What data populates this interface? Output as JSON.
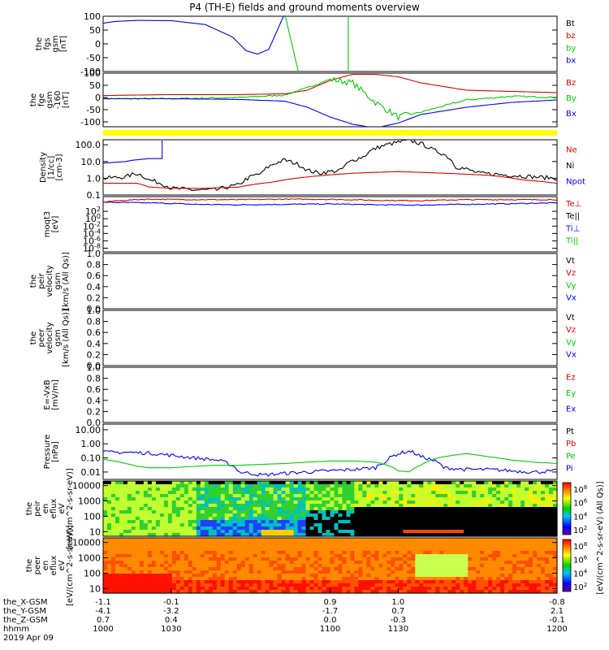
{
  "title": "P4 (TH-E) fields and ground moments overview",
  "date": "2019 Apr 09",
  "chart_data": {
    "type": "line",
    "x_label": "hhmm",
    "x_range": [
      1000,
      1200
    ],
    "x_ticks": [
      "1000",
      "1030",
      "1100",
      "1130",
      "1200"
    ],
    "orbit_rows": [
      {
        "label": "the_X-GSM",
        "values": [
          "-1.1",
          "-0.1",
          "0.9",
          "1.0",
          "-0.8"
        ]
      },
      {
        "label": "the_Y-GSM",
        "values": [
          "-4.1",
          "-3.2",
          "-1.7",
          "0.7",
          "2.1"
        ]
      },
      {
        "label": "the_Z-GSM",
        "values": [
          "0.7",
          "0.4",
          "0.0",
          "-0.3",
          "-0.1"
        ]
      },
      {
        "label": "hhmm",
        "values": [
          "1000",
          "1030",
          "1100",
          "1130",
          "1200"
        ]
      }
    ],
    "panels": [
      {
        "id": "fgs",
        "ylabel": [
          "the",
          "fgs",
          "gsm",
          "[nT]"
        ],
        "scale": "linear",
        "ylim": [
          -100,
          100
        ],
        "y_ticks": [
          "100",
          "50",
          "0",
          "-50",
          "-100"
        ],
        "legend": [
          {
            "text": "Bt",
            "color": "#000000"
          },
          {
            "text": "bz",
            "color": "#dd0000"
          },
          {
            "text": "by",
            "color": "#00cc00"
          },
          {
            "text": "bx",
            "color": "#0000ff"
          }
        ],
        "series": [
          {
            "name": "bx",
            "color": "#0000dd",
            "x": [
              1000,
              1005,
              1015,
              1030,
              1045,
              1057,
              1063,
              1068,
              1073,
              1080
            ],
            "y": [
              75,
              81,
              85,
              84,
              70,
              25,
              -25,
              -37,
              -20,
              110
            ]
          },
          {
            "name": "by",
            "color": "#00cc00",
            "x": [
              1080,
              1086
            ],
            "y": [
              110,
              -100
            ]
          },
          {
            "name": "by",
            "color": "#00cc00",
            "x": [
              1108,
              1108
            ],
            "y": [
              -100,
              110
            ]
          }
        ]
      },
      {
        "id": "fge",
        "ylabel": [
          "the",
          "fge",
          "gsm",
          "-160",
          "[nT]"
        ],
        "scale": "linear",
        "ylim": [
          -120,
          100
        ],
        "y_ticks": [
          "100",
          "50",
          "0",
          "-50",
          "-100"
        ],
        "legend": [
          {
            "text": "Bz",
            "color": "#dd0000"
          },
          {
            "text": "By",
            "color": "#00cc00"
          },
          {
            "text": "Bx",
            "color": "#0000ff"
          }
        ],
        "series": [
          {
            "name": "Bz",
            "color": "#dd0000",
            "x": [
              1000,
              1030,
              1060,
              1080,
              1090,
              1100,
              1110,
              1120,
              1130,
              1140,
              1160,
              1200
            ],
            "y": [
              8,
              12,
              12,
              15,
              30,
              70,
              95,
              95,
              85,
              60,
              30,
              20
            ]
          },
          {
            "name": "By",
            "color": "#00cc00",
            "x": [
              1000,
              1030,
              1060,
              1080,
              1090,
              1100,
              1110,
              1120,
              1130,
              1140,
              1160,
              1180,
              1200
            ],
            "y": [
              -5,
              -5,
              0,
              10,
              40,
              75,
              60,
              -20,
              -80,
              -60,
              -10,
              5,
              0
            ]
          },
          {
            "name": "Bx",
            "color": "#0000ff",
            "x": [
              1000,
              1030,
              1060,
              1080,
              1090,
              1100,
              1110,
              1120,
              1130,
              1140,
              1160,
              1180,
              1200
            ],
            "y": [
              -5,
              -5,
              -8,
              -15,
              -40,
              -80,
              -110,
              -125,
              -105,
              -70,
              -40,
              -20,
              -10
            ]
          }
        ]
      },
      {
        "id": "moments_density",
        "ylabel": [
          "Density",
          "[1/cc]",
          "[cm-3]"
        ],
        "scale": "log",
        "ylim": [
          0.1,
          200
        ],
        "y_ticks": [
          "100.0",
          "10.0",
          "1.0",
          "0.1"
        ],
        "legend": [
          {
            "text": "Ne",
            "color": "#dd0000"
          },
          {
            "text": "Ni",
            "color": "#000000"
          },
          {
            "text": "Npot",
            "color": "#0000ff"
          }
        ],
        "series": [
          {
            "name": "Ni",
            "color": "#000000",
            "x": [
              1000,
              1010,
              1015,
              1020,
              1030,
              1040,
              1050,
              1060,
              1070,
              1080,
              1090,
              1095,
              1105,
              1115,
              1125,
              1135,
              1145,
              1155,
              1165,
              1180,
              1190,
              1200
            ],
            "y": [
              1.0,
              1.2,
              2.0,
              0.8,
              0.25,
              0.2,
              0.2,
              0.4,
              2.0,
              12,
              3.0,
              2.0,
              3.0,
              20,
              100,
              180,
              50,
              5,
              2.0,
              1.5,
              1.2,
              1.0
            ]
          },
          {
            "name": "Ne",
            "color": "#dd0000",
            "x": [
              1000,
              1015,
              1020,
              1030,
              1045,
              1060,
              1075,
              1090,
              1110,
              1130,
              1150,
              1170,
              1185,
              1200
            ],
            "y": [
              0.5,
              0.5,
              0.3,
              0.25,
              0.25,
              0.3,
              0.6,
              1.2,
              2.0,
              2.5,
              2.0,
              1.5,
              0.8,
              0.5
            ]
          },
          {
            "name": "Npot",
            "color": "#0000ff",
            "x": [
              1000,
              1010,
              1013,
              1020,
              1026,
              1026
            ],
            "y": [
              8,
              10,
              12,
              15,
              15,
              180
            ]
          }
        ]
      },
      {
        "id": "moments_temp",
        "ylabel": [
          "moqt3",
          "[eV]"
        ],
        "scale": "log",
        "ylim": [
          1e-09,
          1000000.0
        ],
        "y_ticks": [
          "10^2",
          "10^0",
          "10^-2",
          "10^-4",
          "10^-6",
          "10^-8"
        ],
        "legend": [
          {
            "text": "Te⊥",
            "color": "#dd0000"
          },
          {
            "text": "Te||",
            "color": "#000000"
          },
          {
            "text": "Ti⊥",
            "color": "#0000ff"
          },
          {
            "text": "Ti||",
            "color": "#00cc00"
          }
        ],
        "series": [
          {
            "name": "Ti",
            "color": "#0000ff",
            "x": [
              1000,
              1020,
              1040,
              1060,
              1080,
              1100,
              1120,
              1140,
              1160,
              1180,
              1200
            ],
            "y": [
              30000.0,
              20000.0,
              8000.0,
              6000.0,
              8000.0,
              10000.0,
              6000.0,
              5000.0,
              8000.0,
              12000.0,
              20000.0
            ]
          },
          {
            "name": "Te",
            "color": "#dd0000",
            "x": [
              1000,
              1010,
              1020,
              1040,
              1060,
              1080,
              1100,
              1120,
              1140,
              1160,
              1180,
              1200
            ],
            "y": [
              30000.0,
              100000.0,
              200000.0,
              150000.0,
              150000.0,
              200000.0,
              180000.0,
              100000.0,
              80000.0,
              150000.0,
              150000.0,
              150000.0
            ]
          }
        ]
      },
      {
        "id": "peir_velocity",
        "ylabel": [
          "the",
          "peir",
          "velocity",
          "gsm",
          "[km/s (All Qs)]"
        ],
        "scale": "linear",
        "ylim": [
          0,
          1
        ],
        "y_ticks": [
          "1.0",
          "0.8",
          "0.6",
          "0.4",
          "0.2",
          "0.0"
        ],
        "legend": [
          {
            "text": "Vt",
            "color": "#000000"
          },
          {
            "text": "Vz",
            "color": "#dd0000"
          },
          {
            "text": "Vy",
            "color": "#00cc00"
          },
          {
            "text": "Vx",
            "color": "#0000ff"
          }
        ],
        "series": []
      },
      {
        "id": "peer_velocity",
        "ylabel": [
          "the",
          "peer",
          "velocity",
          "gsm",
          "[km/s (All Qs)]"
        ],
        "scale": "linear",
        "ylim": [
          0,
          1
        ],
        "y_ticks": [
          "1.0",
          "0.8",
          "0.6",
          "0.4",
          "0.2",
          "0.0"
        ],
        "legend": [
          {
            "text": "Vt",
            "color": "#000000"
          },
          {
            "text": "Vz",
            "color": "#dd0000"
          },
          {
            "text": "Vy",
            "color": "#00cc00"
          },
          {
            "text": "Vx",
            "color": "#0000ff"
          }
        ],
        "series": []
      },
      {
        "id": "efield",
        "ylabel": [
          "E=-VxB",
          "[mV/m]"
        ],
        "scale": "linear",
        "ylim": [
          0,
          1
        ],
        "y_ticks": [
          "1.0",
          "0.8",
          "0.6",
          "0.4",
          "0.2",
          "0.0"
        ],
        "legend": [
          {
            "text": "Ez",
            "color": "#dd0000"
          },
          {
            "text": "Ey",
            "color": "#00cc00"
          },
          {
            "text": "Ex",
            "color": "#0000ff"
          }
        ],
        "series": []
      },
      {
        "id": "pressure",
        "ylabel": [
          "Pressure",
          "[nPa]"
        ],
        "scale": "log",
        "ylim": [
          0.003,
          25
        ],
        "y_ticks": [
          "10.00",
          "1.00",
          "0.10",
          "0.01"
        ],
        "legend": [
          {
            "text": "Pt",
            "color": "#000000"
          },
          {
            "text": "Pb",
            "color": "#dd0000"
          },
          {
            "text": "Pe",
            "color": "#00cc00"
          },
          {
            "text": "Pi",
            "color": "#0000ff"
          }
        ],
        "series": [
          {
            "name": "Pi",
            "color": "#0000ff",
            "x": [
              1000,
              1010,
              1020,
              1030,
              1040,
              1050,
              1055,
              1060,
              1070,
              1080,
              1090,
              1100,
              1110,
              1120,
              1125,
              1130,
              1135,
              1140,
              1150,
              1160,
              1170,
              1180,
              1190,
              1200
            ],
            "y": [
              0.25,
              0.25,
              0.22,
              0.15,
              0.1,
              0.07,
              0.04,
              0.01,
              0.006,
              0.008,
              0.01,
              0.012,
              0.015,
              0.02,
              0.06,
              0.2,
              0.3,
              0.12,
              0.02,
              0.015,
              0.015,
              0.012,
              0.01,
              0.012
            ]
          },
          {
            "name": "Pe",
            "color": "#00cc00",
            "x": [
              1000,
              1010,
              1015,
              1020,
              1030,
              1040,
              1050,
              1060,
              1070,
              1080,
              1090,
              1100,
              1110,
              1120,
              1130,
              1135,
              1140,
              1150,
              1160,
              1170,
              1180,
              1190,
              1200
            ],
            "y": [
              0.08,
              0.04,
              0.025,
              0.02,
              0.02,
              0.025,
              0.03,
              0.03,
              0.035,
              0.04,
              0.05,
              0.06,
              0.06,
              0.05,
              0.012,
              0.01,
              0.03,
              0.12,
              0.2,
              0.12,
              0.07,
              0.05,
              0.04
            ]
          }
        ]
      },
      {
        "id": "peir_eflux",
        "type": "heatmap",
        "ylabel": [
          "the",
          "peir",
          "en",
          "eflux",
          "eV",
          "[eV/(cm^2-s-sr-eV)]"
        ],
        "scale": "log",
        "ylim": [
          5,
          20000
        ],
        "y_ticks": [
          "10000",
          "1000",
          "100",
          "10"
        ],
        "colorbar_label": "[eV/(cm^2-s-sr-eV) (All Qs)]",
        "colorbar_ticks": [
          "10^8",
          "10^6",
          "10^4",
          "10^2"
        ]
      },
      {
        "id": "peer_eflux",
        "type": "heatmap",
        "ylabel": [
          "the",
          "peer",
          "en",
          "eflux",
          "eV",
          "[eV/(cm^2-s-sr-eV)]"
        ],
        "scale": "log",
        "ylim": [
          5,
          20000
        ],
        "y_ticks": [
          "10000",
          "1000",
          "100",
          "10"
        ],
        "colorbar_label": "[eV/(cm^2-s-sr-eV) (All Qs)]",
        "colorbar_ticks": [
          "10^8",
          "10^6",
          "10^4",
          "10^2"
        ]
      }
    ]
  }
}
